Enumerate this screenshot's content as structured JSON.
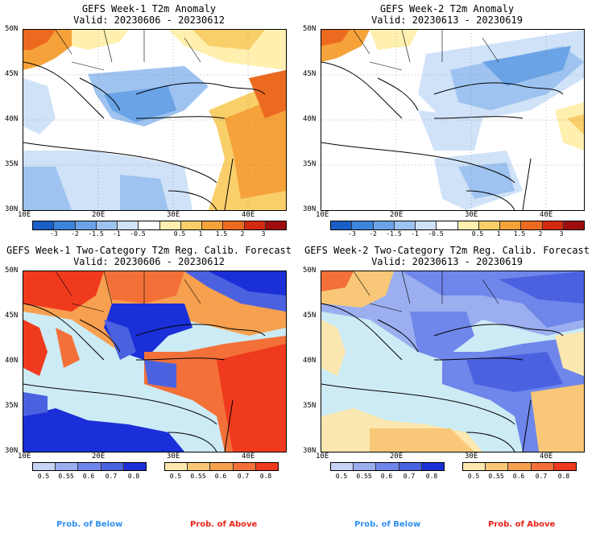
{
  "panels": {
    "p1": {
      "title": "GEFS Week-1 T2m Anomaly",
      "valid": "Valid: 20230606 - 20230612"
    },
    "p2": {
      "title": "GEFS Week-2 T2m Anomaly",
      "valid": "Valid: 20230613 - 20230619"
    },
    "p3": {
      "title": "GEFS Week-1 Two-Category T2m Reg. Calib. Forecast",
      "valid": "Valid: 20230606 - 20230612"
    },
    "p4": {
      "title": "GEFS Week-2 Two-Category T2m Reg. Calib. Forecast",
      "valid": "Valid: 20230613 - 20230619"
    }
  },
  "axes": {
    "lat": [
      "50N",
      "45N",
      "40N",
      "35N",
      "30N"
    ],
    "lon": [
      "10E",
      "20E",
      "30E",
      "40E"
    ]
  },
  "anomaly_scale": {
    "labels": [
      "-3",
      "-2",
      "-1.5",
      "-1",
      "-0.5",
      "0.5",
      "1",
      "1.5",
      "2",
      "3"
    ],
    "colors": [
      "#1a5fc8",
      "#3d84dc",
      "#6aa3e6",
      "#9ec3f0",
      "#cfe2f8",
      "#ffffff",
      "#fff0b0",
      "#f9cf6a",
      "#f5a23a",
      "#ec6a1f",
      "#d42a12",
      "#9e0d0d"
    ]
  },
  "prob_scale": {
    "below_labels": [
      "0.5",
      "0.55",
      "0.6",
      "0.7",
      "0.8"
    ],
    "above_labels": [
      "0.5",
      "0.55",
      "0.6",
      "0.7",
      "0.8"
    ],
    "below_colors": [
      "#c7d3f5",
      "#9aaef0",
      "#6f86ea",
      "#4a62e0",
      "#1b2fd8"
    ],
    "above_colors": [
      "#fbe8b0",
      "#f8c878",
      "#f6a050",
      "#f37038",
      "#f03a1e"
    ]
  },
  "legend": {
    "below": "Prob. of Below",
    "above": "Prob. of Above",
    "below_color": "#2f8ff0",
    "above_color": "#e8231a"
  }
}
